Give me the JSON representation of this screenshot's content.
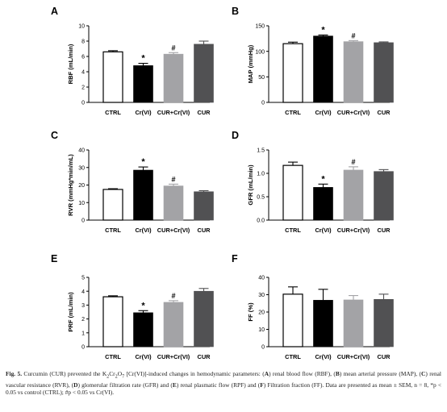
{
  "chart_data": [
    {
      "panel_label": "A",
      "type": "bar",
      "categories": [
        "CTRL",
        "Cr(VI)",
        "CUR+Cr(VI)",
        "CUR"
      ],
      "values": [
        6.6,
        4.8,
        6.3,
        7.6
      ],
      "errors": [
        0.15,
        0.3,
        0.2,
        0.4
      ],
      "markers": [
        "",
        "*",
        "#",
        ""
      ],
      "ylabel": "RBF (mL/min)",
      "ylim": [
        0,
        10
      ],
      "yticks": [
        0,
        2,
        4,
        6,
        8,
        10
      ],
      "ytick_labels": [
        "0",
        "2",
        "4",
        "6",
        "8",
        "10"
      ]
    },
    {
      "panel_label": "B",
      "type": "bar",
      "categories": [
        "CTRL",
        "Cr(VI)",
        "CUR+Cr(VI)",
        "CUR"
      ],
      "values": [
        115,
        130,
        119,
        117
      ],
      "errors": [
        3,
        2,
        2,
        1.5
      ],
      "markers": [
        "",
        "*",
        "#",
        ""
      ],
      "ylabel": "MAP (mmHg)",
      "ylim": [
        0,
        150
      ],
      "yticks": [
        0,
        50,
        100,
        150
      ],
      "ytick_labels": [
        "0",
        "50",
        "100",
        "150"
      ]
    },
    {
      "panel_label": "C",
      "type": "bar",
      "categories": [
        "CTRL",
        "Cr(VI)",
        "CUR+Cr(VI)",
        "CUR"
      ],
      "values": [
        17.5,
        28.5,
        19.5,
        16.2
      ],
      "errors": [
        0.4,
        1.8,
        1.0,
        0.6
      ],
      "markers": [
        "",
        "*",
        "#",
        ""
      ],
      "ylabel": "RVR (mmHg*min/mL)",
      "ylim": [
        0,
        40
      ],
      "yticks": [
        0,
        10,
        20,
        30,
        40
      ],
      "ytick_labels": [
        "0",
        "10",
        "20",
        "30",
        "40"
      ]
    },
    {
      "panel_label": "D",
      "type": "bar",
      "categories": [
        "CTRL",
        "Cr(VI)",
        "CUR+Cr(VI)",
        "CUR"
      ],
      "values": [
        1.17,
        0.7,
        1.07,
        1.04
      ],
      "errors": [
        0.07,
        0.07,
        0.07,
        0.04
      ],
      "markers": [
        "",
        "*",
        "#",
        ""
      ],
      "ylabel": "GFR (mL/min)",
      "ylim": [
        0,
        1.5
      ],
      "yticks": [
        0,
        0.5,
        1.0,
        1.5
      ],
      "ytick_labels": [
        "0.0",
        "0.5",
        "1.0",
        "1.5"
      ]
    },
    {
      "panel_label": "E",
      "type": "bar",
      "categories": [
        "CTRL",
        "Cr(VI)",
        "CUR+Cr(VI)",
        "CUR"
      ],
      "values": [
        3.6,
        2.45,
        3.2,
        4.0
      ],
      "errors": [
        0.07,
        0.15,
        0.12,
        0.2
      ],
      "markers": [
        "",
        "*",
        "#",
        ""
      ],
      "ylabel": "PRF (mL/min)",
      "ylim": [
        0,
        5
      ],
      "yticks": [
        0,
        1,
        2,
        3,
        4,
        5
      ],
      "ytick_labels": [
        "0",
        "1",
        "2",
        "3",
        "4",
        "5"
      ]
    },
    {
      "panel_label": "F",
      "type": "bar",
      "categories": [
        "CTRL",
        "Cr(VI)",
        "CUR+Cr(VI)",
        "CUR"
      ],
      "values": [
        30.3,
        26.8,
        27.0,
        27.3
      ],
      "errors": [
        4.2,
        6.3,
        2.5,
        3.0
      ],
      "markers": [
        "",
        "",
        "",
        ""
      ],
      "ylabel": "FF (%)",
      "ylim": [
        0,
        40
      ],
      "yticks": [
        0,
        10,
        20,
        30,
        40
      ],
      "ytick_labels": [
        "0",
        "10",
        "20",
        "30",
        "40"
      ]
    }
  ],
  "bar_colors": [
    "#ffffff",
    "#000000",
    "#a3a3a6",
    "#515153"
  ],
  "caption": {
    "label": "Fig. 5.",
    "text_before_formula": " Curcumin (CUR) prevented the K",
    "formula_sub1": "2",
    "formula_mid": "Cr",
    "formula_sub2": "2",
    "formula_end": "O",
    "formula_sub3": "7",
    "text_after_formula": " [Cr(VI)]-induced changes in hemodynamic parameters: ",
    "items": [
      {
        "letter": "A",
        "text": " renal blood flow (RBF), "
      },
      {
        "letter": "B",
        "text": " mean arterial pressure (MAP), "
      },
      {
        "letter": "C",
        "text": " renal vascular resistance (RVR), "
      },
      {
        "letter": "D",
        "text": " glomerular filtration rate (GFR) and "
      },
      {
        "letter": "E",
        "text": " renal plasmatic flow (RPF) and "
      },
      {
        "letter": "F",
        "text": " Filtration fraction (FF). "
      }
    ],
    "text_end": "Data are presented as mean ± SEM, n = 8, *p < 0.05 vs control (CTRL); #p < 0.05 vs Cr(VI)."
  }
}
